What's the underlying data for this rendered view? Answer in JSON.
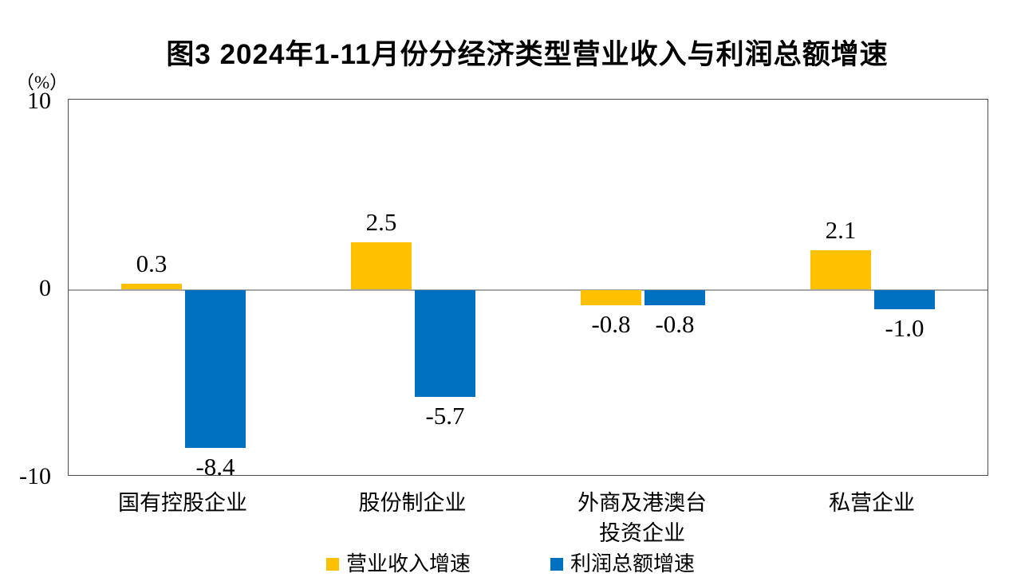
{
  "header": {
    "title": "图3 2024年1-11月份分经济类型营业收入与利润总额增速"
  },
  "axes": {
    "y_unit": "（%）"
  },
  "chart_data": {
    "type": "bar",
    "title": "图3 2024年1-11月份分经济类型营业收入与利润总额增速",
    "categories": [
      "国有控股企业",
      "股份制企业",
      "外商及港澳台\n投资企业",
      "私营企业"
    ],
    "series": [
      {
        "name": "营业收入增速",
        "color": "#FFC000",
        "values": [
          0.3,
          2.5,
          -0.8,
          2.1
        ]
      },
      {
        "name": "利润总额增速",
        "color": "#0070C0",
        "values": [
          -8.4,
          -5.7,
          -0.8,
          -1.0
        ]
      }
    ],
    "xlabel": "",
    "ylabel": "（%）",
    "ylim": [
      -10,
      10
    ],
    "yticks": [
      10,
      0,
      -10
    ],
    "grid": false,
    "legend_position": "bottom",
    "zero_line_color": "#A6A6A6",
    "plot_border_color": "#4D4D4D"
  }
}
